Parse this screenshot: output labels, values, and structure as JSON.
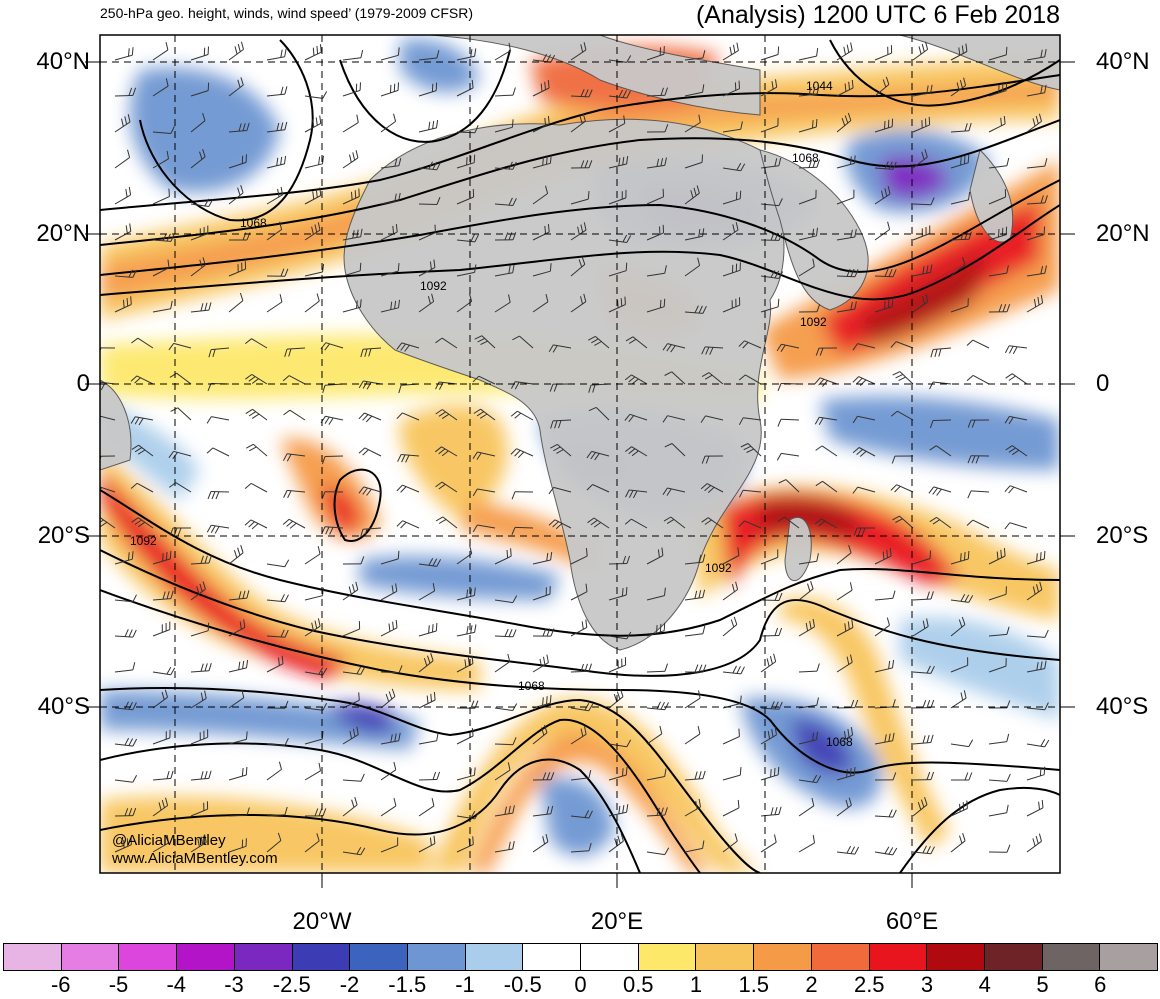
{
  "header": {
    "left_title": "250-hPa geo. height, winds, wind speed’ (1979-2009 CFSR)",
    "right_title": "(Analysis) 1200 UTC 6 Feb 2018"
  },
  "axes": {
    "lat_labels": [
      "40°N",
      "20°N",
      "0",
      "20°S",
      "40°S"
    ],
    "lon_labels": [
      "20°W",
      "20°E",
      "60°E"
    ]
  },
  "contour_labels": [
    "1044",
    "1068",
    "1068",
    "1092",
    "1092",
    "1092",
    "1092",
    "1068",
    "1068"
  ],
  "credit": {
    "handle": "@AliciaMBentley",
    "site": "www.AliciaMBentley.com"
  },
  "colorbar": {
    "colors": [
      "#e8b4e6",
      "#e57ee4",
      "#dc46dc",
      "#b414c8",
      "#7a28c0",
      "#3c3cb4",
      "#3c64be",
      "#6e96d2",
      "#aacdeb",
      "#ffffff",
      "#ffffff",
      "#fde86a",
      "#f8c45c",
      "#f59a46",
      "#f06a3c",
      "#e8141e",
      "#b00a10",
      "#6e2426",
      "#6e6464",
      "#a8a0a0"
    ],
    "ticks": [
      "-6",
      "-5",
      "-4",
      "-3",
      "-2.5",
      "-2",
      "-1.5",
      "-1",
      "-0.5",
      "0",
      "0.5",
      "1",
      "1.5",
      "2",
      "2.5",
      "3",
      "4",
      "5",
      "6"
    ]
  }
}
